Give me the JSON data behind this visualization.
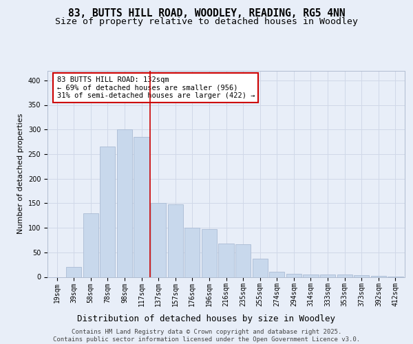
{
  "title_line1": "83, BUTTS HILL ROAD, WOODLEY, READING, RG5 4NN",
  "title_line2": "Size of property relative to detached houses in Woodley",
  "xlabel": "Distribution of detached houses by size in Woodley",
  "ylabel": "Number of detached properties",
  "bar_labels": [
    "19sqm",
    "39sqm",
    "58sqm",
    "78sqm",
    "98sqm",
    "117sqm",
    "137sqm",
    "157sqm",
    "176sqm",
    "196sqm",
    "216sqm",
    "235sqm",
    "255sqm",
    "274sqm",
    "294sqm",
    "314sqm",
    "333sqm",
    "353sqm",
    "373sqm",
    "392sqm",
    "412sqm"
  ],
  "bar_values": [
    0,
    20,
    130,
    265,
    300,
    285,
    150,
    148,
    100,
    98,
    68,
    67,
    37,
    10,
    6,
    5,
    5,
    5,
    3,
    2,
    1
  ],
  "bar_color": "#c8d8ec",
  "bar_edgecolor": "#aabbd4",
  "highlight_index": 6,
  "highlight_line_color": "#cc0000",
  "annotation_text": "83 BUTTS HILL ROAD: 132sqm\n← 69% of detached houses are smaller (956)\n31% of semi-detached houses are larger (422) →",
  "annotation_box_edgecolor": "#cc0000",
  "annotation_box_facecolor": "#ffffff",
  "ylim": [
    0,
    420
  ],
  "yticks": [
    0,
    50,
    100,
    150,
    200,
    250,
    300,
    350,
    400
  ],
  "grid_color": "#d0d8e8",
  "background_color": "#e8eef8",
  "footer_text": "Contains HM Land Registry data © Crown copyright and database right 2025.\nContains public sector information licensed under the Open Government Licence v3.0.",
  "title_fontsize": 10.5,
  "subtitle_fontsize": 9.5,
  "ylabel_fontsize": 8,
  "xlabel_fontsize": 9,
  "tick_fontsize": 7,
  "annotation_fontsize": 7.5,
  "footer_fontsize": 6.5
}
